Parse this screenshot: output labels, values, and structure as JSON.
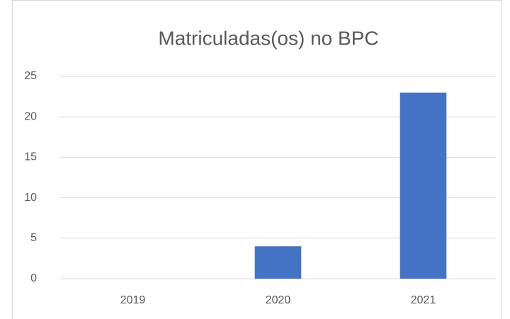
{
  "chart_data": {
    "type": "bar",
    "title": "Matriculadas(os) no BPC",
    "categories": [
      "2019",
      "2020",
      "2021"
    ],
    "values": [
      0,
      4,
      23
    ],
    "color": "#4472c4",
    "ylim": [
      0,
      25
    ],
    "yticks": [
      0,
      5,
      10,
      15,
      20,
      25
    ],
    "grid": true
  }
}
